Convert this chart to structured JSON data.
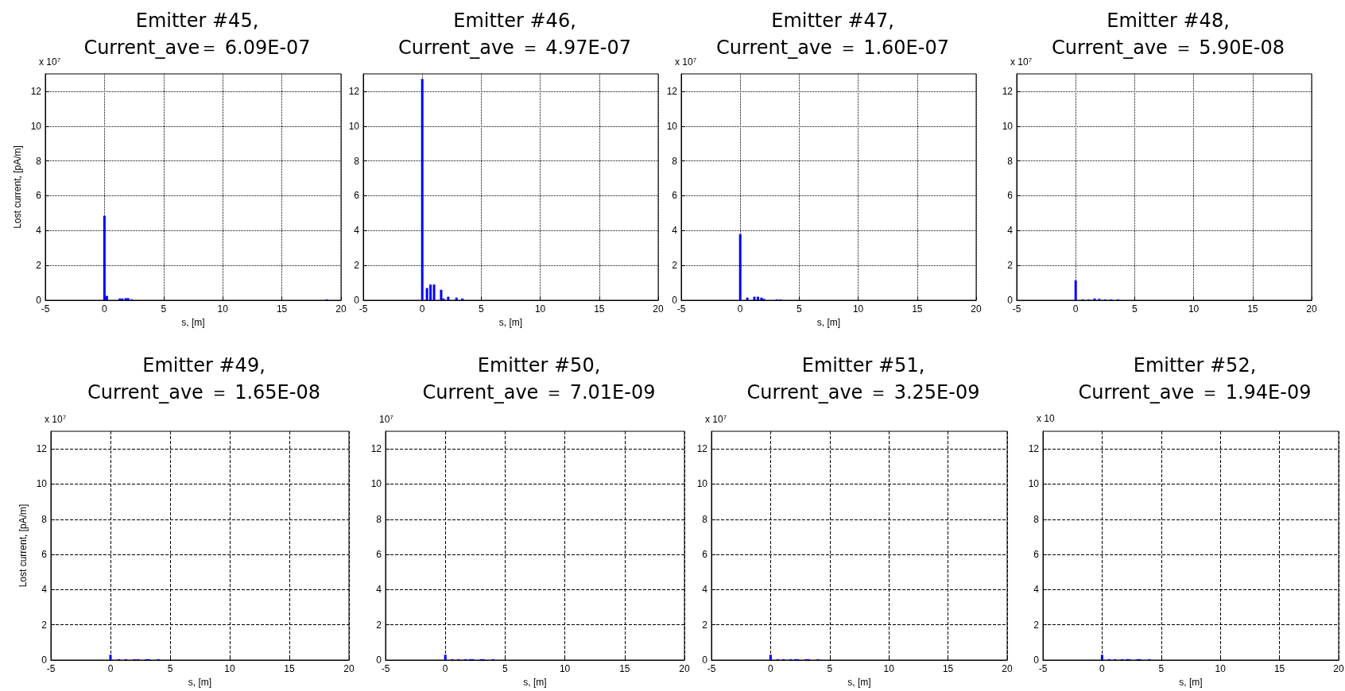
{
  "chart_data": [
    {
      "type": "bar",
      "title": "Emitter #45,\nCurrent_ave＝ 6.09E-07",
      "xlabel": "s, [m]",
      "ylabel": "Lost current, [pA/m]",
      "annotations": [
        "x 10$^{7}$"
      ],
      "color": "#0000ff",
      "x": [
        0,
        0.2,
        1.3,
        1.5,
        1.8,
        2.0,
        2.3,
        18.8
      ],
      "values": [
        4.85,
        0.25,
        0.1,
        0.1,
        0.12,
        0.12,
        0.05,
        0.05
      ],
      "xlim": [
        -5,
        20
      ],
      "xticks": [
        -5,
        0,
        5,
        10,
        15,
        20
      ],
      "ylim": [
        0,
        13
      ],
      "yticks": [
        0,
        2,
        4,
        6,
        8,
        10,
        12
      ],
      "grid": true
    },
    {
      "type": "bar",
      "title": "Emitter #46,\nCurrent_ave ＝ 4.97E-07",
      "xlabel": "s, [m]",
      "color": "#0000ff",
      "x": [
        0,
        0.4,
        0.7,
        1.0,
        1.6,
        1.8,
        2.2,
        2.9,
        3.4
      ],
      "values": [
        12.7,
        0.7,
        0.9,
        0.9,
        0.6,
        0.1,
        0.2,
        0.15,
        0.1
      ],
      "xlim": [
        -5,
        20
      ],
      "xticks": [
        -5,
        0,
        5,
        10,
        15,
        20
      ],
      "ylim": [
        0,
        13
      ],
      "yticks": [
        0,
        2,
        4,
        6,
        8,
        10,
        12
      ],
      "grid": true
    },
    {
      "type": "bar",
      "title": "Emitter #47,\nCurrent_ave ＝ 1.60E-07",
      "xlabel": "s, [m]",
      "annotations": [
        "x 10$^{7}$"
      ],
      "color": "#0000ff",
      "x": [
        0,
        0.6,
        1.2,
        1.5,
        1.8,
        2.0,
        3.1,
        3.4
      ],
      "values": [
        3.8,
        0.15,
        0.2,
        0.2,
        0.15,
        0.08,
        0.05,
        0.05
      ],
      "xlim": [
        -5,
        20
      ],
      "xticks": [
        -5,
        0,
        5,
        10,
        15,
        20
      ],
      "ylim": [
        0,
        13
      ],
      "yticks": [
        0,
        2,
        4,
        6,
        8,
        10,
        12
      ],
      "grid": true
    },
    {
      "type": "bar",
      "title": "Emitter #48,\nCurrent_ave ＝ 5.90E-08",
      "annotations": [
        "x 10$^{7}$"
      ],
      "color": "#0000ff",
      "x": [
        0,
        0.6,
        1.1,
        1.6,
        2.0,
        2.5,
        3.0,
        3.6
      ],
      "values": [
        1.15,
        0.05,
        0.05,
        0.1,
        0.08,
        0.05,
        0.05,
        0.05
      ],
      "xlim": [
        -5,
        20
      ],
      "xticks": [
        -5,
        0,
        5,
        10,
        15,
        20
      ],
      "ylim": [
        0,
        13
      ],
      "yticks": [
        0,
        2,
        4,
        6,
        8,
        10,
        12
      ],
      "grid": true
    },
    {
      "type": "bar",
      "title": "Emitter #49,\nCurrent_ave ＝ 1.65E-08",
      "xlabel": "s, [m]",
      "ylabel": "Lost current, [pA/m]",
      "annotations": [
        "x 10$^{7}$"
      ],
      "color": "#0000ff",
      "x": [
        0,
        0.7,
        1.3,
        2.0,
        2.3,
        3.0,
        3.2,
        4.0
      ],
      "values": [
        0.3,
        0.05,
        0.05,
        0.05,
        0.05,
        0.05,
        0.05,
        0.05
      ],
      "xlim": [
        -5,
        20
      ],
      "xticks": [
        -5,
        0,
        5,
        10,
        15,
        20
      ],
      "ylim": [
        0,
        13
      ],
      "yticks": [
        0,
        2,
        4,
        6,
        8,
        10,
        12
      ],
      "grid": true
    },
    {
      "type": "bar",
      "title": "Emitter #50,\nCurrent_ave ＝ 7.01E-09",
      "xlabel": "s, [m]",
      "annotations": [
        "10$^{7}$"
      ],
      "color": "#0000ff",
      "x": [
        0,
        0.6,
        1.1,
        1.7,
        2.1,
        2.3,
        3.0,
        3.2,
        4.0
      ],
      "values": [
        0.3,
        0.05,
        0.05,
        0.05,
        0.05,
        0.05,
        0.05,
        0.05,
        0.05
      ],
      "xlim": [
        -5,
        20
      ],
      "xticks": [
        -5,
        0,
        5,
        10,
        15,
        20
      ],
      "ylim": [
        0,
        13
      ],
      "yticks": [
        0,
        2,
        4,
        6,
        8,
        10,
        12
      ],
      "grid": true
    },
    {
      "type": "bar",
      "title": "Emitter #51,\nCurrent_ave ＝ 3.25E-09",
      "xlabel": "s, [m]",
      "annotations": [
        "x 10$^{7}$"
      ],
      "color": "#0000ff",
      "x": [
        0,
        0.6,
        1.1,
        1.7,
        2.1,
        2.3,
        3.0,
        3.2,
        4.0
      ],
      "values": [
        0.3,
        0.05,
        0.05,
        0.05,
        0.05,
        0.05,
        0.05,
        0.05,
        0.05
      ],
      "xlim": [
        -5,
        20
      ],
      "xticks": [
        -5,
        0,
        5,
        10,
        15,
        20
      ],
      "ylim": [
        0,
        13
      ],
      "yticks": [
        0,
        2,
        4,
        6,
        8,
        10,
        12
      ],
      "grid": true
    },
    {
      "type": "bar",
      "title": "Emitter #52,\nCurrent_ave ＝ 1.94E-09",
      "xlabel": "s, [m]",
      "annotations": [
        "x 10"
      ],
      "color": "#0000ff",
      "x": [
        0,
        0.6,
        1.1,
        1.7,
        2.1,
        2.3,
        3.0,
        3.2,
        4.0
      ],
      "values": [
        0.3,
        0.05,
        0.05,
        0.05,
        0.05,
        0.05,
        0.05,
        0.05,
        0.05
      ],
      "xlim": [
        -5,
        20
      ],
      "xticks": [
        -5,
        0,
        5,
        10,
        15,
        20
      ],
      "ylim": [
        0,
        13
      ],
      "yticks": [
        0,
        2,
        4,
        6,
        8,
        10,
        12
      ],
      "grid": true
    }
  ]
}
